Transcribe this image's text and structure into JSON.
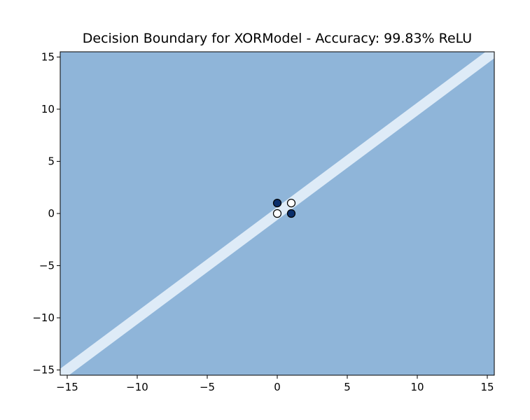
{
  "chart_data": {
    "type": "scatter",
    "title": "Decision Boundary for XORModel - Accuracy: 99.83% ReLU",
    "xlabel": "",
    "ylabel": "",
    "xlim": [
      -15.5,
      15.5
    ],
    "ylim": [
      -15.5,
      15.5
    ],
    "xticks": [
      -15,
      -10,
      -5,
      0,
      5,
      10,
      15
    ],
    "yticks": [
      -15,
      -10,
      -5,
      0,
      5,
      10,
      15
    ],
    "xtick_labels": [
      "−15",
      "−10",
      "−5",
      "0",
      "5",
      "10",
      "15"
    ],
    "ytick_labels": [
      "−15",
      "−10",
      "−5",
      "0",
      "5",
      "10",
      "15"
    ],
    "grid": false,
    "background_region": {
      "color": "#8fb5d9"
    },
    "boundary_band": {
      "color": "#deebf7",
      "from": [
        -15.5,
        -15.5
      ],
      "to": [
        15.5,
        15.5
      ],
      "half_width": 0.5
    },
    "points": [
      {
        "x": 0,
        "y": 1,
        "class": 1,
        "color": "#0b2f6b"
      },
      {
        "x": 1,
        "y": 0,
        "class": 1,
        "color": "#0b2f6b"
      },
      {
        "x": 0,
        "y": 0,
        "class": 0,
        "color": "#ffffff"
      },
      {
        "x": 1,
        "y": 1,
        "class": 0,
        "color": "#ffffff"
      }
    ]
  }
}
